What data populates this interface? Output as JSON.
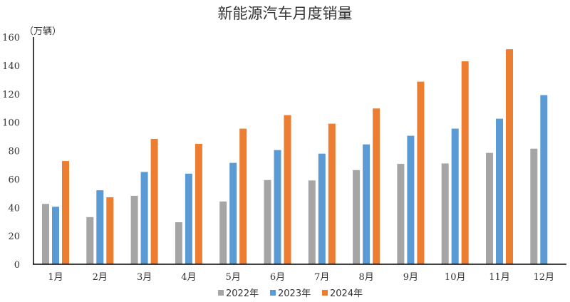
{
  "chart_data": {
    "type": "bar",
    "title": "新能源汽车月度销量",
    "ylabel": "（万辆）",
    "xlabel": "",
    "ylim": [
      0,
      160
    ],
    "yticks": [
      "0",
      "20",
      "40",
      "60",
      "80",
      "100",
      "120",
      "140",
      "160"
    ],
    "categories": [
      "1月",
      "2月",
      "3月",
      "4月",
      "5月",
      "6月",
      "7月",
      "8月",
      "9月",
      "10月",
      "11月",
      "12月"
    ],
    "series": [
      {
        "name": "2022年",
        "color": "#a5a5a5",
        "values": [
          42.5,
          33.2,
          48.2,
          29.6,
          44.2,
          59.3,
          59.0,
          66.3,
          70.7,
          71.0,
          78.4,
          81.4
        ]
      },
      {
        "name": "2023年",
        "color": "#5b9bd5",
        "values": [
          40.5,
          52.1,
          65.0,
          63.8,
          71.4,
          80.4,
          77.9,
          84.4,
          90.5,
          95.5,
          102.5,
          119.1
        ]
      },
      {
        "name": "2024年",
        "color": "#ed7d31",
        "values": [
          72.7,
          47.2,
          88.3,
          84.8,
          95.5,
          105.0,
          99.0,
          109.7,
          128.6,
          142.9,
          151.4,
          null
        ]
      }
    ],
    "grid": false,
    "legend": "bottom"
  }
}
